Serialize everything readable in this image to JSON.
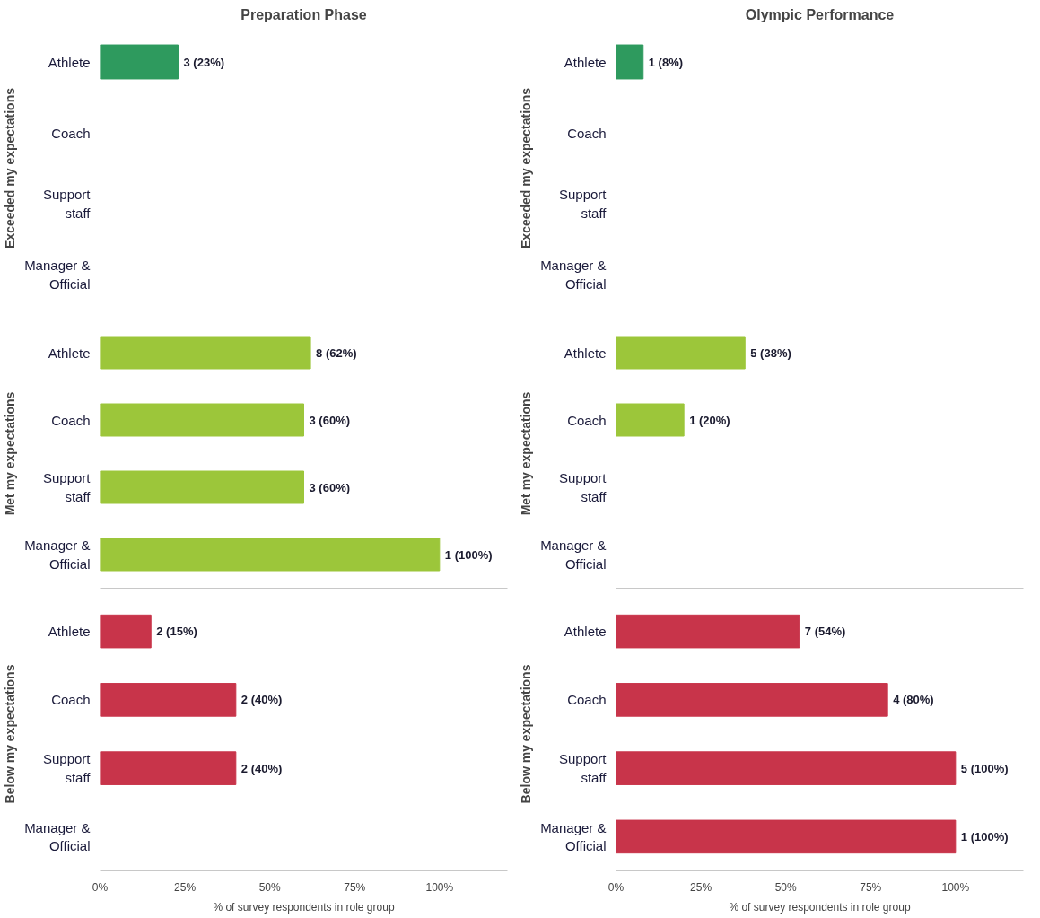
{
  "chart_data": [
    {
      "type": "bar",
      "orientation": "horizontal",
      "title": "Preparation Phase",
      "ylabel": "Exceeded my expectations",
      "categories": [
        "Athlete",
        "Coach",
        "Support staff",
        "Manager & Official"
      ],
      "values": [
        23,
        null,
        null,
        null
      ],
      "value_labels": [
        "3 (23%)",
        null,
        null,
        null
      ],
      "color": "#2e9a5e",
      "xlim": [
        0,
        120
      ],
      "tick_labels": "y"
    },
    {
      "type": "bar",
      "orientation": "horizontal",
      "title": "Olympic Performance",
      "ylabel": "Exceeded my expectations",
      "categories": [
        "Athlete",
        "Coach",
        "Support staff",
        "Manager & Official"
      ],
      "values": [
        8,
        null,
        null,
        null
      ],
      "value_labels": [
        "1 (8%)",
        null,
        null,
        null
      ],
      "color": "#2e9a5e",
      "xlim": [
        0,
        120
      ],
      "tick_labels": "y"
    },
    {
      "type": "bar",
      "orientation": "horizontal",
      "ylabel": "Met my expectations",
      "categories": [
        "Athlete",
        "Coach",
        "Support staff",
        "Manager & Official"
      ],
      "values": [
        62,
        60,
        60,
        100
      ],
      "value_labels": [
        "8 (62%)",
        "3 (60%)",
        "3 (60%)",
        "1 (100%)"
      ],
      "color": "#9cc63a",
      "xlim": [
        0,
        120
      ],
      "tick_labels": "y"
    },
    {
      "type": "bar",
      "orientation": "horizontal",
      "ylabel": "Met my expectations",
      "categories": [
        "Athlete",
        "Coach",
        "Support staff",
        "Manager & Official"
      ],
      "values": [
        38,
        20,
        null,
        null
      ],
      "value_labels": [
        "5 (38%)",
        "1 (20%)",
        null,
        null
      ],
      "color": "#9cc63a",
      "xlim": [
        0,
        120
      ],
      "tick_labels": "y"
    },
    {
      "type": "bar",
      "orientation": "horizontal",
      "ylabel": "Below my expectations",
      "xlabel": "% of survey respondents in role group",
      "categories": [
        "Athlete",
        "Coach",
        "Support staff",
        "Manager & Official"
      ],
      "values": [
        15,
        40,
        40,
        null
      ],
      "value_labels": [
        "2 (15%)",
        "2 (40%)",
        "2 (40%)",
        null
      ],
      "color": "#c8344a",
      "xlim": [
        0,
        120
      ],
      "xticks": [
        {
          "value": 0,
          "label": "0%"
        },
        {
          "value": 25,
          "label": "25%"
        },
        {
          "value": 50,
          "label": "50%"
        },
        {
          "value": 75,
          "label": "75%"
        },
        {
          "value": 100,
          "label": "100%"
        }
      ]
    },
    {
      "type": "bar",
      "orientation": "horizontal",
      "ylabel": "Below my expectations",
      "xlabel": "% of survey respondents in role group",
      "categories": [
        "Athlete",
        "Coach",
        "Support staff",
        "Manager & Official"
      ],
      "values": [
        54,
        80,
        100,
        100
      ],
      "value_labels": [
        "7 (54%)",
        "4 (80%)",
        "5 (100%)",
        "1 (100%)"
      ],
      "color": "#c8344a",
      "xlim": [
        0,
        120
      ],
      "xticks": [
        {
          "value": 0,
          "label": "0%"
        },
        {
          "value": 25,
          "label": "25%"
        },
        {
          "value": 50,
          "label": "50%"
        },
        {
          "value": 75,
          "label": "75%"
        },
        {
          "value": 100,
          "label": "100%"
        }
      ]
    }
  ]
}
